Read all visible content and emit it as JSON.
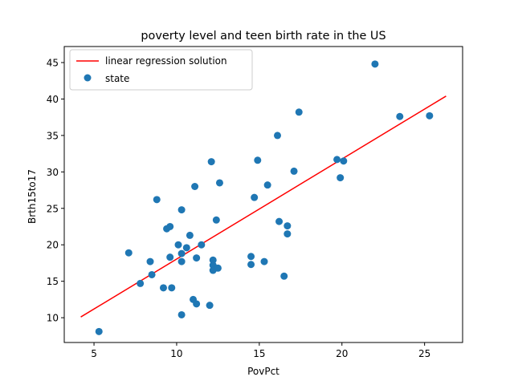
{
  "chart_data": {
    "type": "scatter",
    "title": "poverty level and teen birth rate in the US",
    "xlabel": "PovPct",
    "ylabel": "Brth15to17",
    "xlim": [
      3.2,
      27.3
    ],
    "ylim": [
      6.6,
      47.2
    ],
    "xticks": [
      5,
      10,
      15,
      20,
      25
    ],
    "yticks": [
      10,
      15,
      20,
      25,
      30,
      35,
      40,
      45
    ],
    "grid": false,
    "legend_position": "upper-left",
    "colors": {
      "scatter": "#1f77b4",
      "line": "#ff0000"
    },
    "series": [
      {
        "name": "state",
        "kind": "scatter",
        "points": [
          [
            5.3,
            8.1
          ],
          [
            7.1,
            18.9
          ],
          [
            7.8,
            14.7
          ],
          [
            8.4,
            17.7
          ],
          [
            8.5,
            15.9
          ],
          [
            8.8,
            26.2
          ],
          [
            9.2,
            14.1
          ],
          [
            9.4,
            22.2
          ],
          [
            9.6,
            22.5
          ],
          [
            9.6,
            18.3
          ],
          [
            9.7,
            14.1
          ],
          [
            10.1,
            20.0
          ],
          [
            10.3,
            18.8
          ],
          [
            10.3,
            24.8
          ],
          [
            10.3,
            17.7
          ],
          [
            10.3,
            10.4
          ],
          [
            10.6,
            19.6
          ],
          [
            10.8,
            21.3
          ],
          [
            11.0,
            12.5
          ],
          [
            11.1,
            28.0
          ],
          [
            11.2,
            18.2
          ],
          [
            11.2,
            11.9
          ],
          [
            11.5,
            20.0
          ],
          [
            12.0,
            11.7
          ],
          [
            12.1,
            31.4
          ],
          [
            12.2,
            17.9
          ],
          [
            12.2,
            17.2
          ],
          [
            12.2,
            16.5
          ],
          [
            12.4,
            23.4
          ],
          [
            12.5,
            16.8
          ],
          [
            12.6,
            28.5
          ],
          [
            14.5,
            18.4
          ],
          [
            14.5,
            17.3
          ],
          [
            14.7,
            26.5
          ],
          [
            14.9,
            31.6
          ],
          [
            15.3,
            17.7
          ],
          [
            15.5,
            28.2
          ],
          [
            16.1,
            35.0
          ],
          [
            16.2,
            23.2
          ],
          [
            16.5,
            15.7
          ],
          [
            16.7,
            22.6
          ],
          [
            16.7,
            21.5
          ],
          [
            17.1,
            30.1
          ],
          [
            17.4,
            38.2
          ],
          [
            19.7,
            31.7
          ],
          [
            19.9,
            29.2
          ],
          [
            20.1,
            31.5
          ],
          [
            22.0,
            44.8
          ],
          [
            23.5,
            37.6
          ],
          [
            25.3,
            37.7
          ]
        ]
      },
      {
        "name": "linear regression solution",
        "kind": "line",
        "points": [
          [
            4.2,
            10.1
          ],
          [
            26.3,
            40.4
          ]
        ]
      }
    ]
  }
}
